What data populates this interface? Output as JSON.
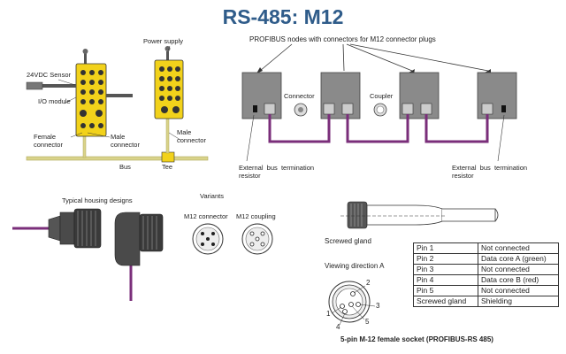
{
  "title": "RS-485: M12",
  "left_diagram": {
    "power_supply": "Power supply",
    "sensor": "24VDC Sensor",
    "io_module": "I/O module",
    "female_connector": "Female\nconnector",
    "male_connector_1": "Male\nconnector",
    "male_connector_2": "Male\nconnector",
    "bus": "Bus",
    "tee": "Tee"
  },
  "right_diagram": {
    "heading": "PROFIBUS nodes with connectors for M12 connector plugs",
    "connector": "Connector",
    "coupler": "Coupler",
    "termination_left": "External  bus  termination\nresistor",
    "termination_right": "External  bus  termination\nresistor"
  },
  "housing": {
    "label": "Typical housing designs",
    "variants": "Variants",
    "m12_connector": "M12 connector",
    "m12_coupling": "M12 coupling"
  },
  "socket": {
    "screwed_gland": "Screwed gland",
    "viewing_direction": "Viewing direction A",
    "caption": "5-pin M-12 female socket (PROFIBUS-RS 485)",
    "pin_numbers": [
      "1",
      "2",
      "3",
      "4",
      "5"
    ]
  },
  "pin_table": [
    [
      "Pin 1",
      "Not connected"
    ],
    [
      "Pin 2",
      "Data core A (green)"
    ],
    [
      "Pin 3",
      "Not connected"
    ],
    [
      "Pin 4",
      "Data core B (red)"
    ],
    [
      "Pin 5",
      "Not connected"
    ],
    [
      "Screwed gland",
      "Shielding"
    ]
  ],
  "colors": {
    "title": "#2f5c8a",
    "bus_cable": "#7a2e7a",
    "module": "#f2d21b",
    "node": "#8a8a8a",
    "drop_cable": "#d9d38a"
  }
}
